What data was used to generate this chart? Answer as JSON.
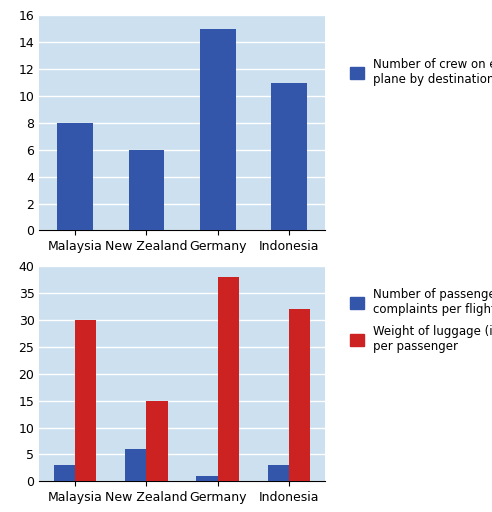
{
  "categories": [
    "Malaysia",
    "New Zealand",
    "Germany",
    "Indonesia"
  ],
  "chart1": {
    "crew": [
      8,
      6,
      15,
      11
    ],
    "bar_color": "#3355aa",
    "ylim": [
      0,
      16
    ],
    "yticks": [
      0,
      2,
      4,
      6,
      8,
      10,
      12,
      14,
      16
    ],
    "legend_label": "Number of crew on each\nplane by destination",
    "bg_color": "#cce0f0"
  },
  "chart2": {
    "complaints": [
      3,
      6,
      1,
      3
    ],
    "luggage": [
      30,
      15,
      38,
      32
    ],
    "bar_color_blue": "#3355aa",
    "bar_color_red": "#cc2222",
    "ylim": [
      0,
      40
    ],
    "yticks": [
      0,
      5,
      10,
      15,
      20,
      25,
      30,
      35,
      40
    ],
    "legend_label_blue": "Number of passenger\ncomplaints per flight",
    "legend_label_red": "Weight of luggage (in kg)\nper passenger",
    "bg_color": "#cce0f0"
  },
  "figure_bg": "#ffffff",
  "grid_color": "#ffffff",
  "tick_label_fontsize": 9,
  "legend_fontsize": 8.5
}
